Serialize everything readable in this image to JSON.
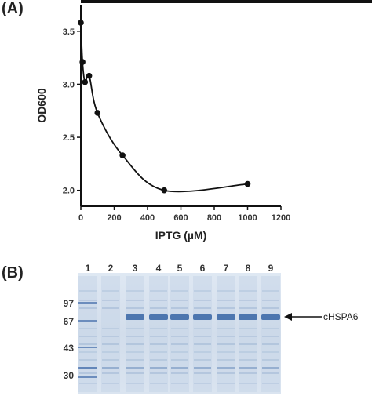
{
  "panels": {
    "a_label": "(A)",
    "b_label": "(B)"
  },
  "chart_data": {
    "type": "line",
    "title": "",
    "xlabel": "IPTG (µM)",
    "ylabel": "OD600",
    "xlim": [
      0,
      1200
    ],
    "ylim": [
      1.85,
      3.75
    ],
    "x_ticks": [
      "0",
      "200",
      "400",
      "600",
      "800",
      "1000",
      "1200"
    ],
    "y_ticks": [
      "2.0",
      "2.5",
      "3.0",
      "3.5"
    ],
    "grid": false,
    "series": [
      {
        "x": [
          0,
          10,
          25,
          50,
          100,
          250,
          500,
          1000
        ],
        "values": [
          3.58,
          3.21,
          3.02,
          3.08,
          2.73,
          2.33,
          2.0,
          2.06
        ]
      }
    ]
  },
  "gel": {
    "lanes": [
      "1",
      "2",
      "3",
      "4",
      "5",
      "6",
      "7",
      "8",
      "9"
    ],
    "markers": [
      "97",
      "67",
      "43",
      "30"
    ],
    "band_label": "cHSPA6",
    "arrow": "←"
  }
}
